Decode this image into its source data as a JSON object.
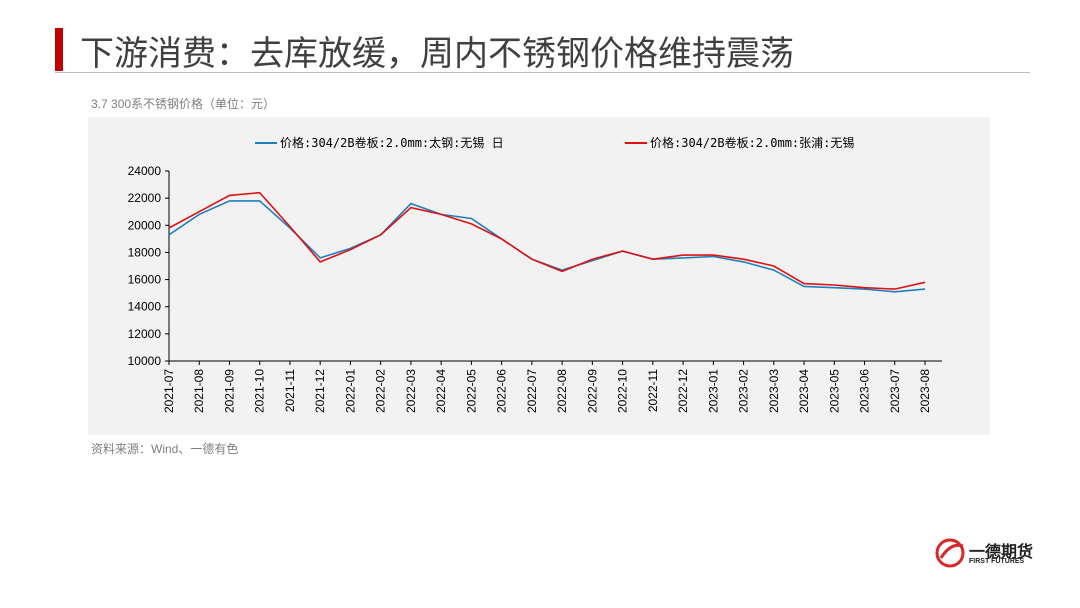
{
  "header": {
    "title": "下游消费：去库放缓，周内不锈钢价格维持震荡"
  },
  "chart_subtitle": "3.7 300系不锈钢价格（单位：元）",
  "source": "资料来源：Wind、一德有色",
  "logo": {
    "name": "一德期货",
    "subname": "FIRST FUTURES"
  },
  "chart_data": {
    "type": "line",
    "categories": [
      "2021-07",
      "2021-08",
      "2021-09",
      "2021-10",
      "2021-11",
      "2021-12",
      "2022-01",
      "2022-02",
      "2022-03",
      "2022-04",
      "2022-05",
      "2022-06",
      "2022-07",
      "2022-08",
      "2022-09",
      "2022-10",
      "2022-11",
      "2022-12",
      "2023-01",
      "2023-02",
      "2023-03",
      "2023-04",
      "2023-05",
      "2023-06",
      "2023-07",
      "2023-08"
    ],
    "series": [
      {
        "name": "价格:304/2B卷板:2.0mm:太钢:无锡 日",
        "color": "#1f7fbf",
        "values": [
          19300,
          20800,
          21800,
          21800,
          19800,
          17600,
          18300,
          19300,
          21600,
          20800,
          20500,
          19000,
          17500,
          16700,
          17400,
          18100,
          17500,
          17600,
          17700,
          17300,
          16700,
          15500,
          15400,
          15300,
          15100,
          15300
        ]
      },
      {
        "name": "价格:304/2B卷板:2.0mm:张浦:无锡",
        "color": "#e01010",
        "values": [
          19800,
          21000,
          22200,
          22400,
          19900,
          17300,
          18200,
          19300,
          21300,
          20800,
          20100,
          19000,
          17500,
          16600,
          17500,
          18100,
          17500,
          17800,
          17800,
          17500,
          17000,
          15700,
          15600,
          15400,
          15300,
          15800
        ]
      }
    ],
    "ylim": [
      10000,
      24000
    ],
    "yticks": [
      10000,
      12000,
      14000,
      16000,
      18000,
      20000,
      22000,
      24000
    ],
    "legend": "top"
  }
}
